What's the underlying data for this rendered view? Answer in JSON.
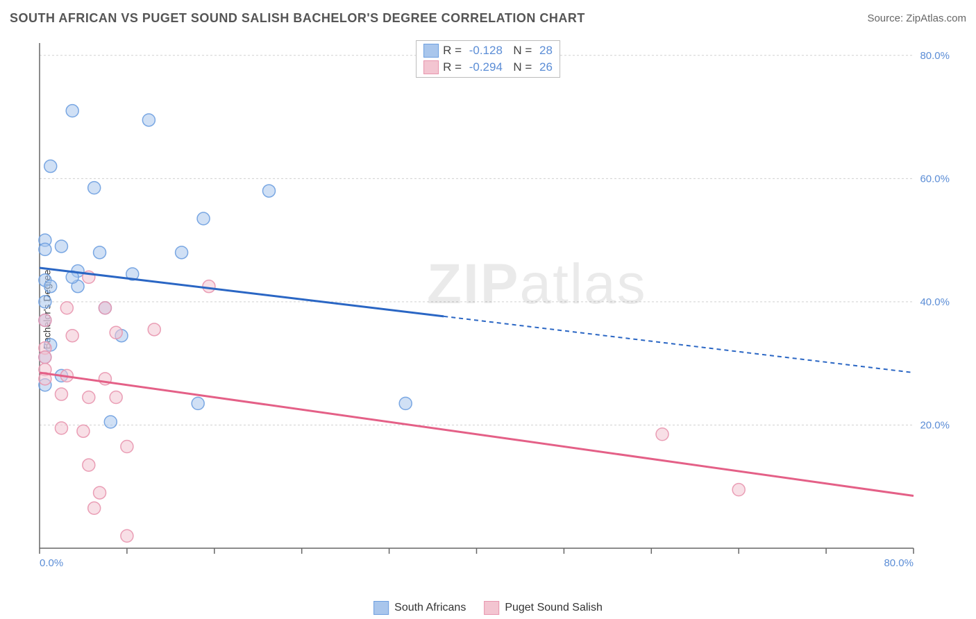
{
  "title": "SOUTH AFRICAN VS PUGET SOUND SALISH BACHELOR'S DEGREE CORRELATION CHART",
  "source": "Source: ZipAtlas.com",
  "y_axis_title": "Bachelor's Degree",
  "watermark": {
    "bold": "ZIP",
    "rest": "atlas"
  },
  "chart": {
    "type": "scatter-with-trendlines",
    "background_color": "#ffffff",
    "grid_color": "#d0d0d0",
    "axis_color": "#666666",
    "xlim": [
      0,
      80
    ],
    "ylim": [
      0,
      82
    ],
    "x_ticks": [
      0,
      80
    ],
    "x_tick_labels": [
      "0.0%",
      "80.0%"
    ],
    "x_minor_ticks": [
      8,
      16,
      24,
      32,
      40,
      48,
      56,
      64,
      72
    ],
    "y_gridlines": [
      20,
      40,
      60,
      80
    ],
    "y_tick_labels": [
      "20.0%",
      "40.0%",
      "60.0%",
      "80.0%"
    ],
    "label_color": "#5b8dd6",
    "label_fontsize": 15,
    "marker_radius": 9,
    "marker_opacity": 0.55,
    "series": [
      {
        "name": "South Africans",
        "color_fill": "#a9c6ec",
        "color_stroke": "#6d9fe0",
        "trend_color": "#2a66c4",
        "R": "-0.128",
        "N": "28",
        "trend": {
          "y_intercept": 45.5,
          "y_at_xmax": 28.5,
          "solid_until_x": 37
        },
        "points": [
          {
            "x": 3.0,
            "y": 71.0
          },
          {
            "x": 10.0,
            "y": 69.5
          },
          {
            "x": 1.0,
            "y": 62.0
          },
          {
            "x": 5.0,
            "y": 58.5
          },
          {
            "x": 21.0,
            "y": 58.0
          },
          {
            "x": 15.0,
            "y": 53.5
          },
          {
            "x": 0.5,
            "y": 50.0
          },
          {
            "x": 0.5,
            "y": 48.5
          },
          {
            "x": 2.0,
            "y": 49.0
          },
          {
            "x": 5.5,
            "y": 48.0
          },
          {
            "x": 13.0,
            "y": 48.0
          },
          {
            "x": 3.5,
            "y": 45.0
          },
          {
            "x": 8.5,
            "y": 44.5
          },
          {
            "x": 0.5,
            "y": 43.5
          },
          {
            "x": 1.0,
            "y": 42.5
          },
          {
            "x": 3.5,
            "y": 42.5
          },
          {
            "x": 6.0,
            "y": 39.0
          },
          {
            "x": 0.5,
            "y": 40.0
          },
          {
            "x": 0.5,
            "y": 37.0
          },
          {
            "x": 7.5,
            "y": 34.5
          },
          {
            "x": 1.0,
            "y": 33.0
          },
          {
            "x": 0.5,
            "y": 31.0
          },
          {
            "x": 2.0,
            "y": 28.0
          },
          {
            "x": 0.5,
            "y": 26.5
          },
          {
            "x": 6.5,
            "y": 20.5
          },
          {
            "x": 14.5,
            "y": 23.5
          },
          {
            "x": 33.5,
            "y": 23.5
          },
          {
            "x": 3.0,
            "y": 44.0
          }
        ]
      },
      {
        "name": "Puget Sound Salish",
        "color_fill": "#f3c5d1",
        "color_stroke": "#e895ae",
        "trend_color": "#e46087",
        "R": "-0.294",
        "N": "26",
        "trend": {
          "y_intercept": 28.5,
          "y_at_xmax": 8.5,
          "solid_until_x": 80
        },
        "points": [
          {
            "x": 4.5,
            "y": 44.0
          },
          {
            "x": 15.5,
            "y": 42.5
          },
          {
            "x": 2.5,
            "y": 39.0
          },
          {
            "x": 6.0,
            "y": 39.0
          },
          {
            "x": 0.5,
            "y": 37.0
          },
          {
            "x": 3.0,
            "y": 34.5
          },
          {
            "x": 7.0,
            "y": 35.0
          },
          {
            "x": 10.5,
            "y": 35.5
          },
          {
            "x": 0.5,
            "y": 32.5
          },
          {
            "x": 0.5,
            "y": 31.0
          },
          {
            "x": 0.5,
            "y": 29.0
          },
          {
            "x": 0.5,
            "y": 27.5
          },
          {
            "x": 2.5,
            "y": 28.0
          },
          {
            "x": 6.0,
            "y": 27.5
          },
          {
            "x": 2.0,
            "y": 25.0
          },
          {
            "x": 4.5,
            "y": 24.5
          },
          {
            "x": 7.0,
            "y": 24.5
          },
          {
            "x": 2.0,
            "y": 19.5
          },
          {
            "x": 4.0,
            "y": 19.0
          },
          {
            "x": 8.0,
            "y": 16.5
          },
          {
            "x": 4.5,
            "y": 13.5
          },
          {
            "x": 5.0,
            "y": 6.5
          },
          {
            "x": 8.0,
            "y": 2.0
          },
          {
            "x": 5.5,
            "y": 9.0
          },
          {
            "x": 57.0,
            "y": 18.5
          },
          {
            "x": 64.0,
            "y": 9.5
          }
        ]
      }
    ]
  },
  "legend_top": {
    "rows": [
      {
        "swatch_fill": "#a9c6ec",
        "swatch_stroke": "#6d9fe0",
        "R": "-0.128",
        "N": "28"
      },
      {
        "swatch_fill": "#f3c5d1",
        "swatch_stroke": "#e895ae",
        "R": "-0.294",
        "N": "26"
      }
    ]
  },
  "legend_bottom": {
    "items": [
      {
        "swatch_fill": "#a9c6ec",
        "swatch_stroke": "#6d9fe0",
        "label": "South Africans"
      },
      {
        "swatch_fill": "#f3c5d1",
        "swatch_stroke": "#e895ae",
        "label": "Puget Sound Salish"
      }
    ]
  }
}
